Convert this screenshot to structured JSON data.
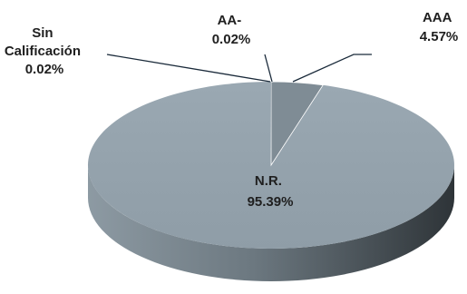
{
  "chart_data": {
    "type": "pie",
    "style": "3d",
    "title": "",
    "legend": "none",
    "slices": [
      {
        "label": "N.R.",
        "value": 95.39,
        "display": "95.39%",
        "color": "#95a4ae"
      },
      {
        "label": "AAA",
        "value": 4.57,
        "display": "4.57%",
        "color": "#7f8c95"
      },
      {
        "label": "AA-",
        "value": 0.02,
        "display": "0.02%",
        "color": "#8a98a2"
      },
      {
        "label": "Sin Calificación",
        "label_lines": [
          "Sin",
          "Calificación"
        ],
        "value": 0.02,
        "display": "0.02%",
        "color": "#8a98a2"
      }
    ]
  }
}
